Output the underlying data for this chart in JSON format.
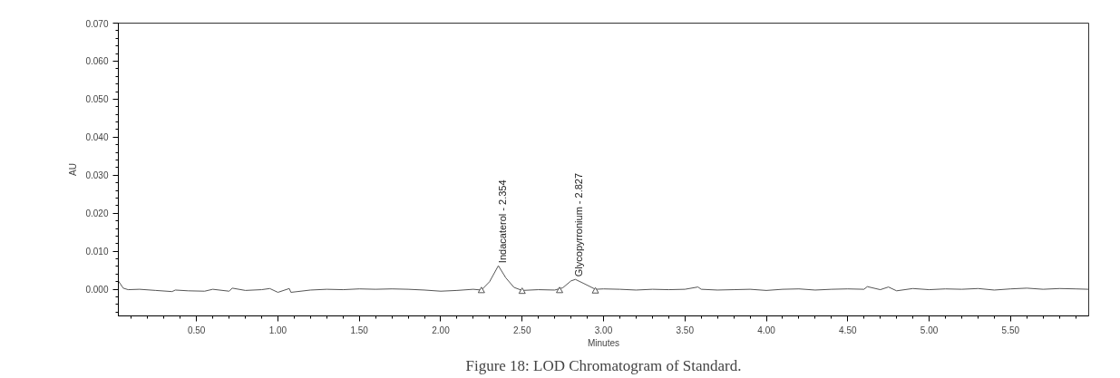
{
  "chart_data": {
    "type": "line",
    "title": "Figure 18: LOD Chromatogram of Standard.",
    "xlabel": "Minutes",
    "ylabel": "AU",
    "xlim": [
      0.02,
      5.98
    ],
    "ylim": [
      -0.007,
      0.07
    ],
    "xticks": [
      {
        "value": 0.5,
        "label": "0.50"
      },
      {
        "value": 1.0,
        "label": "1.00"
      },
      {
        "value": 1.5,
        "label": "1.50"
      },
      {
        "value": 2.0,
        "label": "2.00"
      },
      {
        "value": 2.5,
        "label": "2.50"
      },
      {
        "value": 3.0,
        "label": "3.00"
      },
      {
        "value": 3.5,
        "label": "3.50"
      },
      {
        "value": 4.0,
        "label": "4.00"
      },
      {
        "value": 4.5,
        "label": "4.50"
      },
      {
        "value": 5.0,
        "label": "5.00"
      },
      {
        "value": 5.5,
        "label": "5.50"
      }
    ],
    "yticks": [
      {
        "value": 0.0,
        "label": "0.000"
      },
      {
        "value": 0.01,
        "label": "0.010"
      },
      {
        "value": 0.02,
        "label": "0.020"
      },
      {
        "value": 0.03,
        "label": "0.030"
      },
      {
        "value": 0.04,
        "label": "0.040"
      },
      {
        "value": 0.05,
        "label": "0.050"
      },
      {
        "value": 0.06,
        "label": "0.060"
      },
      {
        "value": 0.07,
        "label": "0.070"
      }
    ],
    "grid": false,
    "series": [
      {
        "color": "#555555",
        "marker": "none",
        "line_style": "solid",
        "x": [
          0.02,
          0.05,
          0.08,
          0.15,
          0.25,
          0.35,
          0.37,
          0.45,
          0.55,
          0.6,
          0.7,
          0.72,
          0.8,
          0.9,
          0.95,
          1.0,
          1.07,
          1.08,
          1.2,
          1.3,
          1.4,
          1.5,
          1.6,
          1.7,
          1.8,
          1.9,
          2.0,
          2.1,
          2.2,
          2.25,
          2.3,
          2.354,
          2.4,
          2.45,
          2.5,
          2.6,
          2.7,
          2.75,
          2.8,
          2.827,
          2.88,
          2.95,
          3.0,
          3.1,
          3.2,
          3.3,
          3.4,
          3.5,
          3.58,
          3.6,
          3.7,
          3.8,
          3.9,
          4.0,
          4.1,
          4.2,
          4.3,
          4.4,
          4.5,
          4.6,
          4.62,
          4.7,
          4.75,
          4.8,
          4.9,
          5.0,
          5.1,
          5.2,
          5.3,
          5.4,
          5.5,
          5.6,
          5.7,
          5.8,
          5.9,
          5.98
        ],
        "values": [
          0.0022,
          0.0003,
          -0.0001,
          0.0,
          -0.0003,
          -0.0006,
          -0.0002,
          -0.0004,
          -0.0005,
          0.0,
          -0.0005,
          0.0003,
          -0.0003,
          -0.0001,
          0.0002,
          -0.0008,
          0.0002,
          -0.0008,
          -0.0002,
          0.0,
          -0.0001,
          0.0001,
          0.0,
          0.0001,
          0.0,
          -0.0002,
          -0.0005,
          -0.0003,
          0.0,
          -0.0002,
          0.002,
          0.0062,
          0.003,
          0.0005,
          -0.0003,
          -0.0001,
          -0.0002,
          0.0004,
          0.0022,
          0.0026,
          0.0015,
          0.0,
          0.0001,
          0.0,
          -0.0002,
          0.0,
          -0.0001,
          0.0,
          0.0006,
          0.0,
          -0.0002,
          -0.0001,
          0.0,
          -0.0003,
          0.0,
          0.0001,
          -0.0002,
          0.0,
          0.0001,
          0.0,
          0.0007,
          -0.0001,
          0.0006,
          -0.0004,
          0.0002,
          -0.0001,
          0.0001,
          0.0,
          0.0002,
          -0.0002,
          0.0001,
          0.0003,
          0.0,
          0.0002,
          0.0001,
          0.0
        ]
      },
      {
        "type": "scatter",
        "color": "#555555",
        "marker": "triangle",
        "x": [
          2.25,
          2.5,
          2.73,
          2.95
        ],
        "values": [
          -0.0004,
          -0.0006,
          -0.0004,
          -0.0005
        ]
      }
    ],
    "annotations": [
      {
        "text": "Indacaterol - 2.354",
        "x": 2.354,
        "y": 0.0062
      },
      {
        "text": "Glycopyrronium - 2.827",
        "x": 2.827,
        "y": 0.0026
      }
    ]
  }
}
